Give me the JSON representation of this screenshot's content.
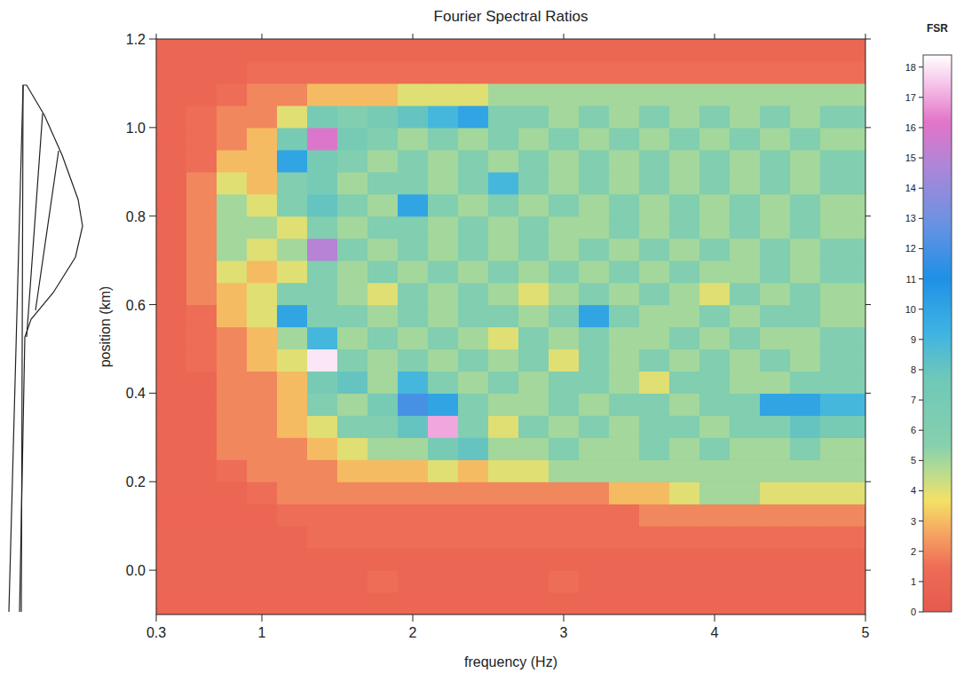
{
  "chart_data": {
    "type": "heatmap",
    "title": "Fourier Spectral Ratios",
    "x_label": "frequency (Hz)",
    "y_label": "position (km)",
    "xlim": [
      0.3,
      5
    ],
    "ylim": [
      -0.1,
      1.2
    ],
    "xticks": [
      0.3,
      1,
      2,
      3,
      4,
      5
    ],
    "yticks": [
      {
        "value": 0,
        "label": "0.0"
      },
      0.2,
      0.4,
      0.6,
      0.8,
      {
        "value": 1,
        "label": "1.0"
      },
      1.2
    ],
    "grid": false,
    "x": [
      0.4,
      0.6,
      0.8,
      1.0,
      1.2,
      1.4,
      1.6,
      1.8,
      2.0,
      2.2,
      2.4,
      2.6,
      2.8,
      3.0,
      3.2,
      3.4,
      3.6,
      3.8,
      4.0,
      4.2,
      4.4,
      4.6,
      4.8
    ],
    "y": [
      -0.075,
      -0.025,
      0.025,
      0.075,
      0.125,
      0.175,
      0.225,
      0.275,
      0.325,
      0.375,
      0.425,
      0.475,
      0.525,
      0.575,
      0.625,
      0.675,
      0.725,
      0.775,
      0.825,
      0.875,
      0.925,
      0.975,
      1.025,
      1.075,
      1.125,
      1.175
    ],
    "values": [
      [
        1,
        1,
        1,
        1,
        1,
        1,
        1,
        1,
        1,
        1,
        1,
        1,
        1,
        1,
        1,
        1,
        1,
        1,
        1,
        1,
        1,
        1,
        1
      ],
      [
        1,
        1,
        1,
        1,
        1,
        1,
        1,
        1.5,
        1,
        1,
        1,
        1,
        1,
        1.5,
        1,
        1,
        1,
        1,
        1,
        1,
        1,
        1,
        1
      ],
      [
        1,
        1,
        1,
        1,
        1,
        1,
        1,
        1,
        1,
        1,
        1,
        1,
        1,
        1,
        1,
        1,
        1,
        1,
        1,
        1,
        1,
        1,
        1
      ],
      [
        1,
        1,
        1,
        1,
        1,
        1.5,
        1.5,
        1.5,
        1.5,
        1.5,
        1.5,
        1.5,
        1.5,
        1.5,
        1.5,
        1.5,
        1.5,
        1.5,
        1.5,
        1.5,
        1.5,
        1.5,
        1.5
      ],
      [
        1,
        1,
        1,
        1,
        1.5,
        1.5,
        1.5,
        1.5,
        1.5,
        1.5,
        1.5,
        1.5,
        1.5,
        1.5,
        1.5,
        1.5,
        2,
        2,
        2,
        2,
        2,
        2,
        2
      ],
      [
        1,
        1,
        1,
        1.5,
        2,
        2,
        2,
        2,
        2,
        2,
        2,
        2,
        2,
        2,
        2,
        3,
        3,
        4,
        5,
        5,
        4,
        4,
        4
      ],
      [
        1,
        1,
        1.5,
        2,
        2,
        2,
        3,
        3,
        3,
        4,
        3,
        4,
        4,
        5,
        5,
        5,
        5,
        5,
        5,
        5,
        5,
        5,
        5
      ],
      [
        1,
        1,
        2,
        2,
        2,
        3,
        4,
        5,
        5,
        7,
        8,
        5,
        5,
        6,
        5,
        5,
        6,
        5,
        6,
        5,
        5,
        6,
        5
      ],
      [
        1,
        1,
        2,
        2,
        3,
        4,
        6,
        6,
        8,
        17,
        6,
        4,
        6,
        5,
        6,
        5,
        6,
        6,
        5,
        6,
        6,
        8,
        7
      ],
      [
        1,
        1,
        2,
        2,
        3,
        6,
        5,
        7,
        12,
        10,
        6,
        5,
        5,
        6,
        5,
        6,
        6,
        5,
        6,
        6,
        10,
        10,
        9
      ],
      [
        1,
        1,
        2,
        2,
        3,
        7,
        8,
        5,
        9,
        6,
        5,
        6,
        5,
        6,
        6,
        5,
        4,
        6,
        6,
        5,
        5,
        6,
        6
      ],
      [
        1,
        1.5,
        2,
        3,
        4,
        18,
        6,
        5,
        6,
        5,
        6,
        5,
        6,
        4,
        6,
        5,
        6,
        5,
        6,
        5,
        6,
        5,
        6
      ],
      [
        1,
        1.5,
        2,
        3,
        5,
        9,
        5,
        6,
        5,
        6,
        5,
        4,
        6,
        5,
        6,
        5,
        5,
        6,
        5,
        6,
        5,
        5,
        6
      ],
      [
        1,
        1.5,
        3,
        4,
        10,
        6,
        6,
        5,
        6,
        5,
        6,
        6,
        5,
        6,
        10,
        6,
        5,
        5,
        6,
        5,
        6,
        6,
        5
      ],
      [
        1,
        2,
        3,
        4,
        6,
        6,
        5,
        4,
        6,
        5,
        6,
        5,
        4,
        5,
        6,
        5,
        6,
        5,
        4,
        6,
        5,
        6,
        5
      ],
      [
        1,
        2,
        4,
        3,
        4,
        6,
        5,
        6,
        5,
        6,
        5,
        6,
        5,
        6,
        5,
        6,
        5,
        6,
        5,
        5,
        6,
        5,
        6
      ],
      [
        1,
        2,
        5,
        4,
        5,
        15,
        6,
        5,
        6,
        5,
        6,
        5,
        6,
        5,
        6,
        5,
        6,
        5,
        6,
        5,
        6,
        5,
        6
      ],
      [
        1,
        2,
        5,
        5,
        4,
        6,
        5,
        6,
        6,
        5,
        6,
        5,
        6,
        5,
        5,
        6,
        5,
        6,
        5,
        6,
        5,
        6,
        5
      ],
      [
        1,
        2,
        5,
        4,
        6,
        8,
        6,
        5,
        10,
        6,
        5,
        6,
        5,
        6,
        5,
        6,
        5,
        6,
        5,
        6,
        5,
        6,
        5
      ],
      [
        1,
        2,
        4,
        3,
        6,
        7,
        5,
        6,
        6,
        5,
        6,
        9,
        6,
        5,
        6,
        5,
        6,
        5,
        6,
        5,
        6,
        5,
        6
      ],
      [
        1,
        1.5,
        3,
        3,
        10,
        7,
        6,
        5,
        6,
        5,
        6,
        5,
        6,
        5,
        6,
        5,
        6,
        5,
        6,
        5,
        6,
        5,
        6
      ],
      [
        1,
        1.5,
        2,
        3,
        7,
        16,
        7,
        6,
        5,
        6,
        5,
        6,
        5,
        6,
        5,
        6,
        5,
        6,
        5,
        6,
        5,
        6,
        5
      ],
      [
        1,
        1.5,
        2,
        2,
        4,
        7,
        6,
        7,
        8,
        9,
        10,
        6,
        6,
        5,
        6,
        5,
        6,
        5,
        6,
        5,
        6,
        5,
        6
      ],
      [
        1,
        1,
        1.5,
        2,
        2,
        3,
        3,
        3,
        4,
        4,
        4,
        5,
        5,
        5,
        5,
        5,
        5,
        5,
        5,
        5,
        5,
        5,
        5
      ],
      [
        1,
        1,
        1,
        1.5,
        1.5,
        1.5,
        1.5,
        1.5,
        1.5,
        1.5,
        1.5,
        1.5,
        1.5,
        1.5,
        1.5,
        1.5,
        1.5,
        1.5,
        1.5,
        1.5,
        1.5,
        1.5,
        1.5
      ],
      [
        1,
        1,
        1,
        1,
        1,
        1,
        1,
        1,
        1,
        1,
        1,
        1,
        1,
        1,
        1,
        1,
        1,
        1,
        1,
        1,
        1,
        1,
        1
      ]
    ],
    "color_label": "FSR",
    "color_range": [
      0,
      18.4
    ],
    "color_ticks": [
      0,
      1,
      2,
      3,
      4,
      5,
      6,
      7,
      8,
      9,
      10,
      11,
      12,
      13,
      14,
      15,
      16,
      17,
      18
    ]
  }
}
